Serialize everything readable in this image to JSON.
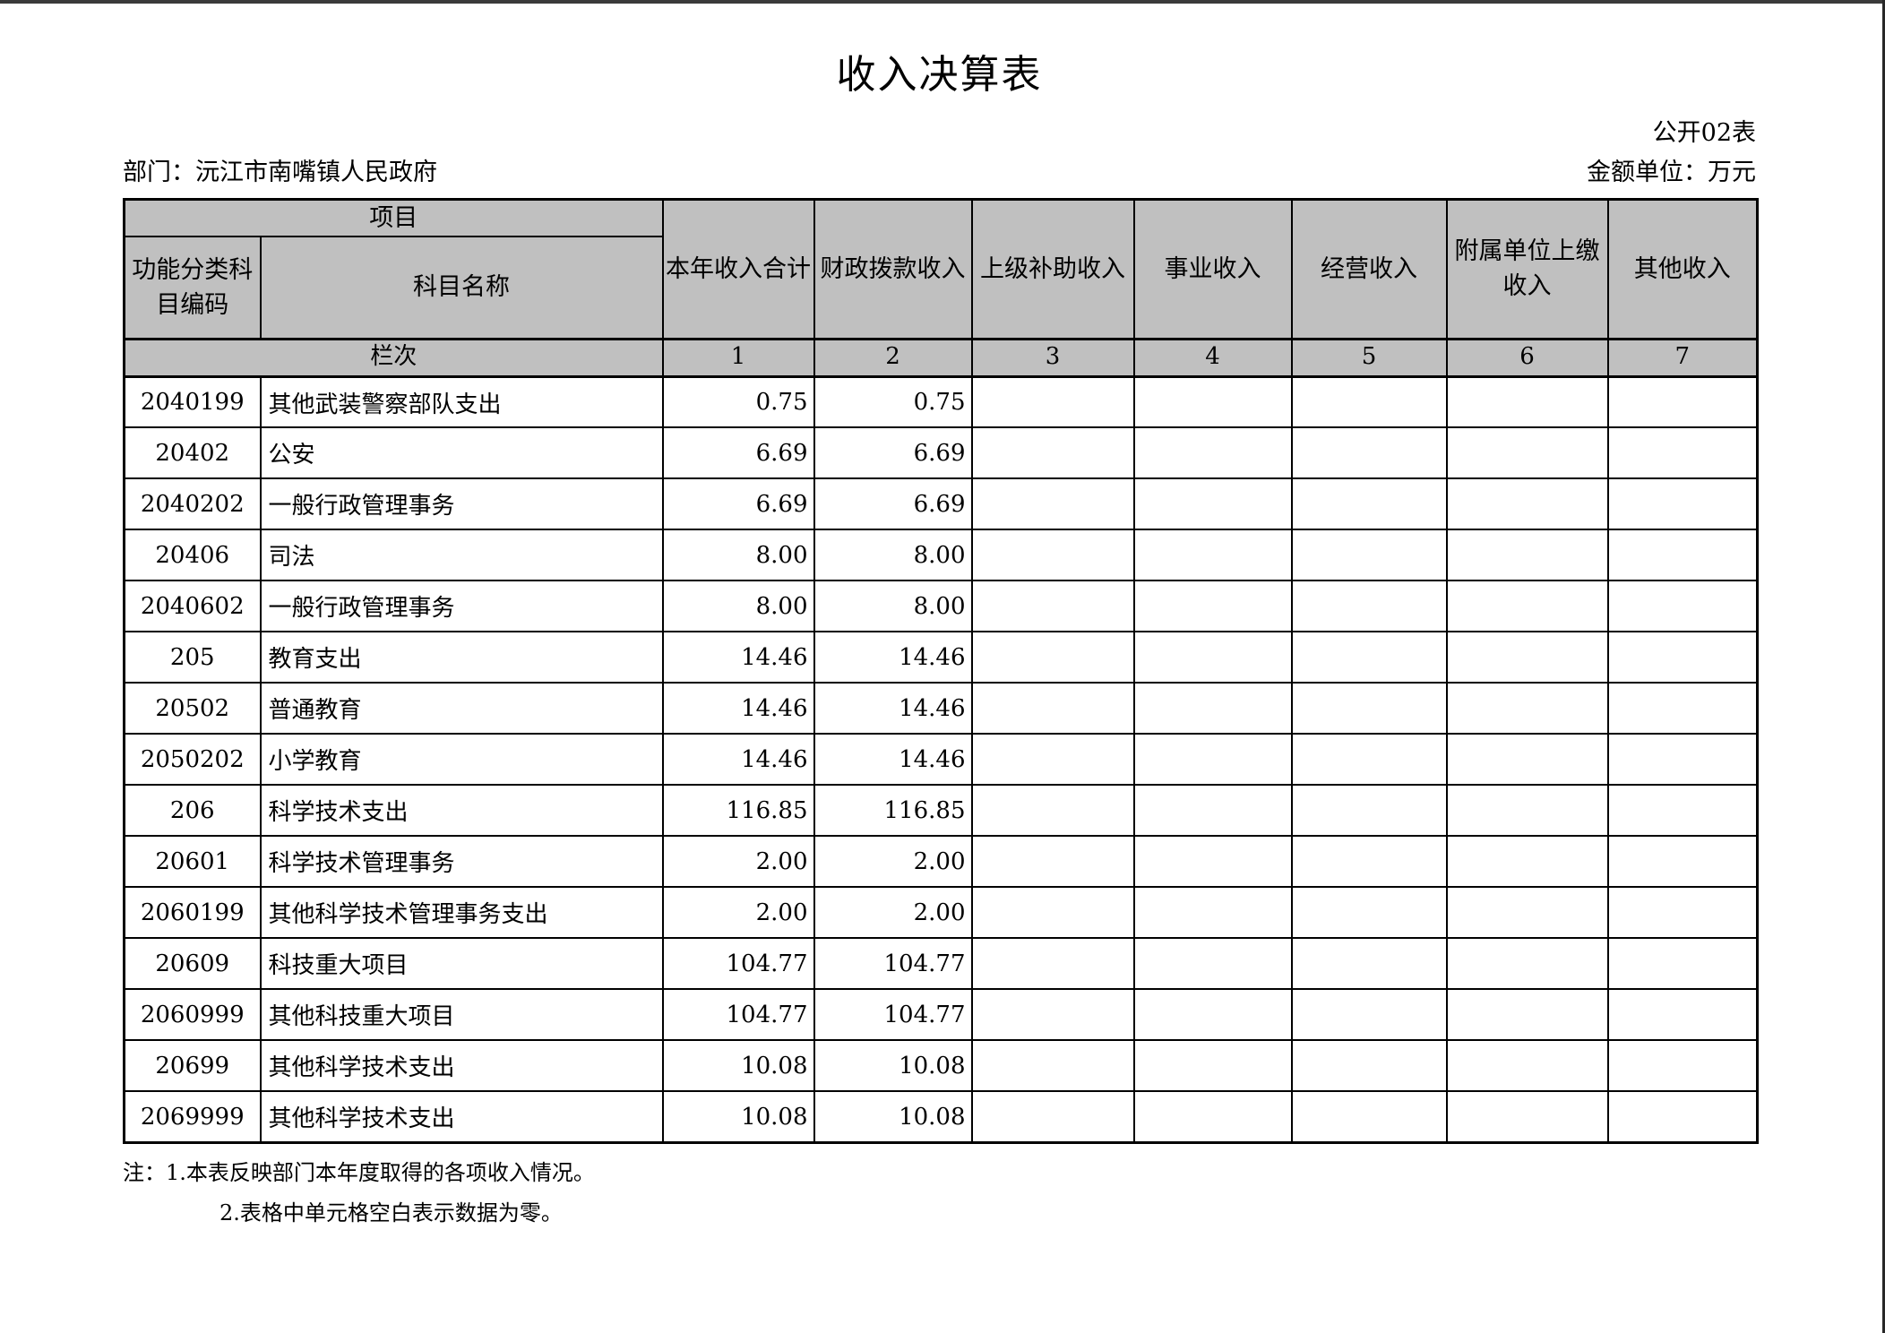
{
  "page": {
    "title": "收入决算表",
    "table_code": "公开02表",
    "department": "部门：沅江市南嘴镇人民政府",
    "unit": "金额单位：万元"
  },
  "colors": {
    "header_bg": "#c0c0c0",
    "border": "#000000",
    "page_bg": "#ffffff",
    "top_edge": "#3a3a3a",
    "right_edge": "#272727"
  },
  "table": {
    "header": {
      "project": "项目",
      "code": "功能分类科目编码",
      "subject_name": "科目名称",
      "columns": [
        "本年收入合计",
        "财政拨款收入",
        "上级补助收入",
        "事业收入",
        "经营收入",
        "附属单位上缴收入",
        "其他收入"
      ],
      "row_label": "栏次",
      "column_numbers": [
        "1",
        "2",
        "3",
        "4",
        "5",
        "6",
        "7"
      ]
    },
    "rows": [
      [
        "2040199",
        "其他武装警察部队支出",
        "0.75",
        "0.75",
        "",
        "",
        "",
        "",
        ""
      ],
      [
        "20402",
        "公安",
        "6.69",
        "6.69",
        "",
        "",
        "",
        "",
        ""
      ],
      [
        "2040202",
        "一般行政管理事务",
        "6.69",
        "6.69",
        "",
        "",
        "",
        "",
        ""
      ],
      [
        "20406",
        "司法",
        "8.00",
        "8.00",
        "",
        "",
        "",
        "",
        ""
      ],
      [
        "2040602",
        "一般行政管理事务",
        "8.00",
        "8.00",
        "",
        "",
        "",
        "",
        ""
      ],
      [
        "205",
        "教育支出",
        "14.46",
        "14.46",
        "",
        "",
        "",
        "",
        ""
      ],
      [
        "20502",
        "普通教育",
        "14.46",
        "14.46",
        "",
        "",
        "",
        "",
        ""
      ],
      [
        "2050202",
        "小学教育",
        "14.46",
        "14.46",
        "",
        "",
        "",
        "",
        ""
      ],
      [
        "206",
        "科学技术支出",
        "116.85",
        "116.85",
        "",
        "",
        "",
        "",
        ""
      ],
      [
        "20601",
        "科学技术管理事务",
        "2.00",
        "2.00",
        "",
        "",
        "",
        "",
        ""
      ],
      [
        "2060199",
        "其他科学技术管理事务支出",
        "2.00",
        "2.00",
        "",
        "",
        "",
        "",
        ""
      ],
      [
        "20609",
        "科技重大项目",
        "104.77",
        "104.77",
        "",
        "",
        "",
        "",
        ""
      ],
      [
        "2060999",
        "其他科技重大项目",
        "104.77",
        "104.77",
        "",
        "",
        "",
        "",
        ""
      ],
      [
        "20699",
        "其他科学技术支出",
        "10.08",
        "10.08",
        "",
        "",
        "",
        "",
        ""
      ],
      [
        "2069999",
        "其他科学技术支出",
        "10.08",
        "10.08",
        "",
        "",
        "",
        "",
        ""
      ]
    ]
  },
  "notes": [
    "注：1.本表反映部门本年度取得的各项收入情况。",
    "2.表格中单元格空白表示数据为零。"
  ]
}
